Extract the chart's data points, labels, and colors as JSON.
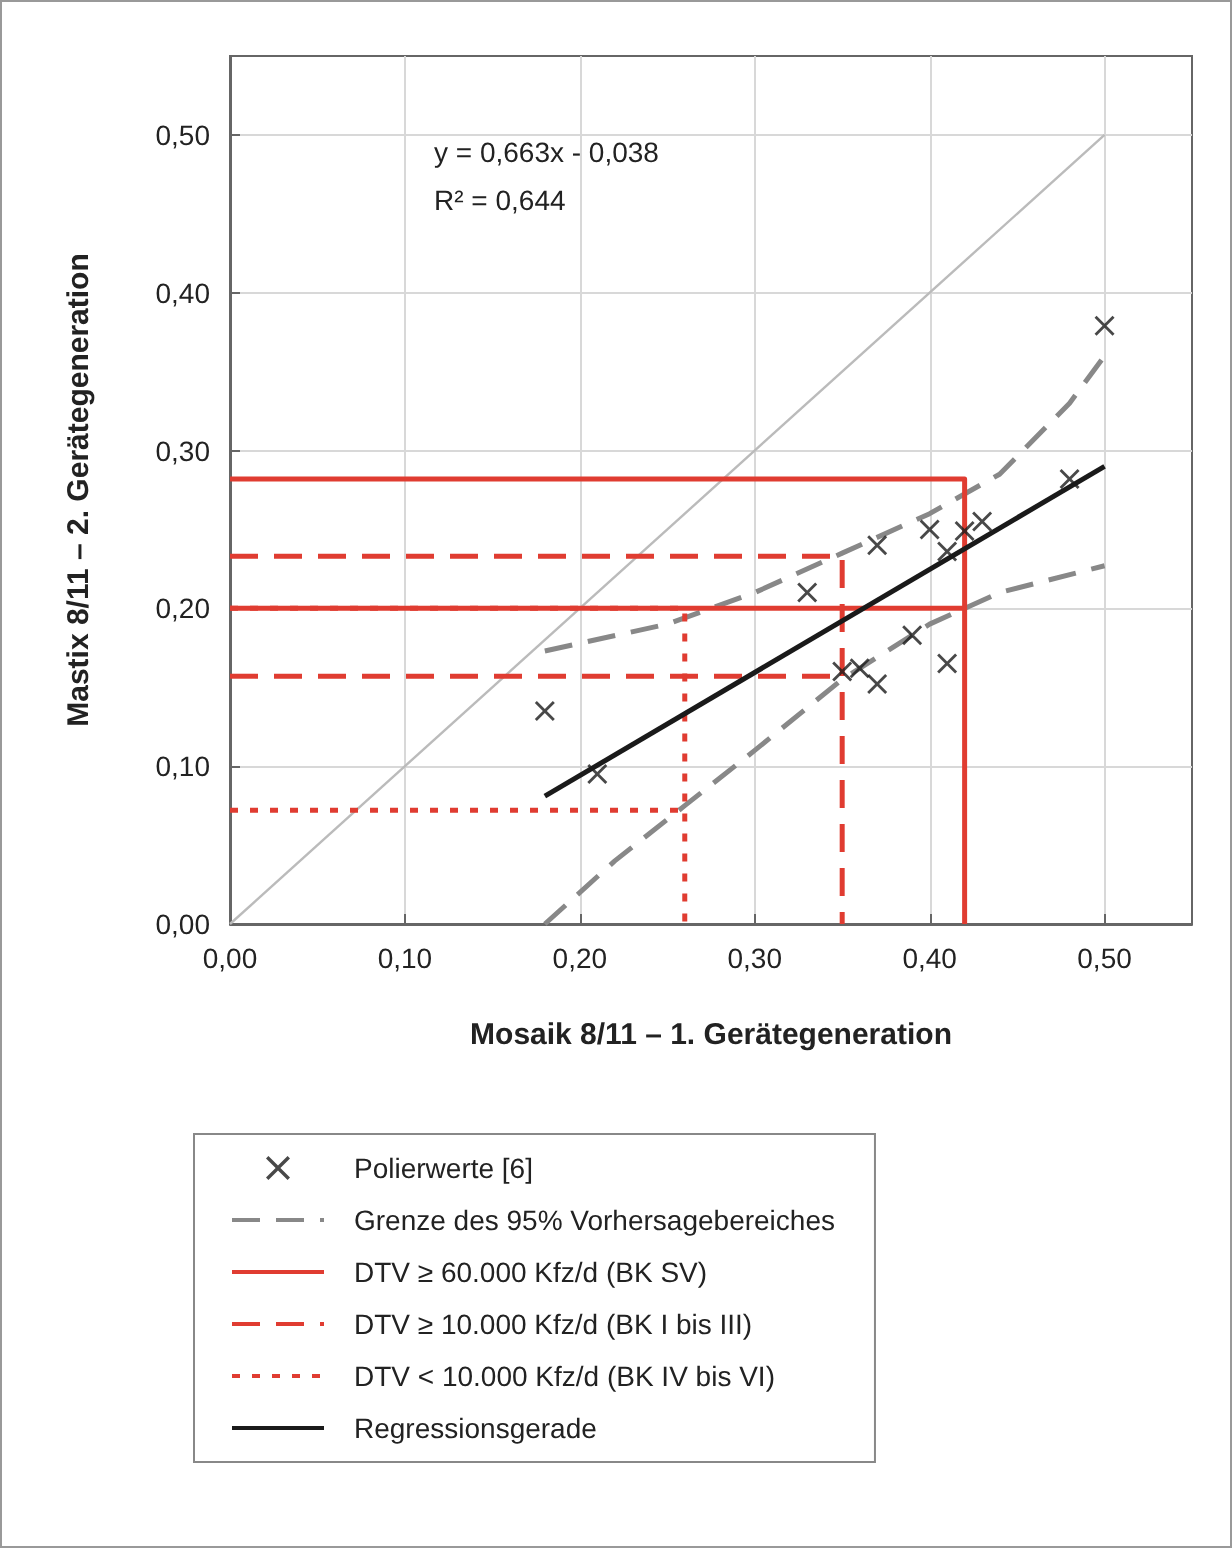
{
  "chart_data": {
    "type": "scatter",
    "xlabel": "Mosaik 8/11 – 1. Gerätegeneration",
    "ylabel": "Mastix 8/11 – 2. Gerätegeneration",
    "annotations": [
      "y = 0,663x - 0,038",
      "R² = 0,644"
    ],
    "xlim": [
      0,
      0.55
    ],
    "ylim": [
      0,
      0.55
    ],
    "xticks": [
      {
        "value": 0,
        "label": "0,00"
      },
      {
        "value": 0.1,
        "label": "0,10"
      },
      {
        "value": 0.2,
        "label": "0,20"
      },
      {
        "value": 0.3,
        "label": "0,30"
      },
      {
        "value": 0.4,
        "label": "0,40"
      },
      {
        "value": 0.5,
        "label": "0,50"
      }
    ],
    "yticks": [
      {
        "value": 0,
        "label": "0,00"
      },
      {
        "value": 0.1,
        "label": "0,10"
      },
      {
        "value": 0.2,
        "label": "0,20"
      },
      {
        "value": 0.3,
        "label": "0,30"
      },
      {
        "value": 0.4,
        "label": "0,40"
      },
      {
        "value": 0.5,
        "label": "0,50"
      }
    ],
    "grid": true,
    "legend": "bottom",
    "series": [
      {
        "type": "line",
        "color": "#bbbbbb",
        "line_style": "solid",
        "marker": "none",
        "x": [
          0,
          0.5
        ],
        "values": [
          0,
          0.5
        ]
      },
      {
        "type": "scatter",
        "name": "Polierwerte [6]",
        "color": "#1a1a1a",
        "marker": "cross",
        "x": [
          0.18,
          0.21,
          0.33,
          0.37,
          0.35,
          0.36,
          0.37,
          0.39,
          0.4,
          0.41,
          0.41,
          0.42,
          0.43,
          0.48,
          0.5
        ],
        "values": [
          0.135,
          0.095,
          0.21,
          0.24,
          0.16,
          0.162,
          0.152,
          0.183,
          0.25,
          0.165,
          0.236,
          0.249,
          0.255,
          0.282,
          0.379
        ]
      },
      {
        "type": "line",
        "name": "Grenze des 95% Vorhersagebereiches",
        "color": "#888888",
        "line_style": "dashed",
        "marker": "none",
        "x": [
          0.18,
          0.25,
          0.3,
          0.35,
          0.4,
          0.44,
          0.48,
          0.5
        ],
        "values": [
          0.173,
          0.19,
          0.21,
          0.235,
          0.26,
          0.285,
          0.33,
          0.36
        ]
      },
      {
        "type": "line",
        "color": "#888888",
        "line_style": "dashed",
        "marker": "none",
        "x": [
          0.18,
          0.22,
          0.26,
          0.3,
          0.35,
          0.4,
          0.44,
          0.5
        ],
        "values": [
          0,
          0.04,
          0.075,
          0.11,
          0.155,
          0.19,
          0.21,
          0.227
        ]
      },
      {
        "type": "line",
        "name": "DTV ≥ 60.000 Kfz/d (BK SV)",
        "color": "#e03c31",
        "line_style": "solid",
        "marker": "none",
        "x": [
          0,
          0.42,
          0.42
        ],
        "values": [
          0.282,
          0.282,
          0
        ]
      },
      {
        "type": "line",
        "color": "#e03c31",
        "line_style": "solid",
        "marker": "none",
        "x": [
          0,
          0.42
        ],
        "values": [
          0.2,
          0.2
        ]
      },
      {
        "type": "line",
        "name": "DTV ≥ 10.000 Kfz/d (BK I bis III)",
        "color": "#e03c31",
        "line_style": "dashed",
        "marker": "none",
        "x": [
          0,
          0.35,
          0.35
        ],
        "values": [
          0.233,
          0.233,
          0
        ]
      },
      {
        "type": "line",
        "color": "#e03c31",
        "line_style": "dashed",
        "marker": "none",
        "x": [
          0,
          0.35
        ],
        "values": [
          0.157,
          0.157
        ]
      },
      {
        "type": "line",
        "name": "DTV < 10.000 Kfz/d (BK IV bis VI)",
        "color": "#e03c31",
        "line_style": "dotted",
        "marker": "none",
        "x": [
          0,
          0.26,
          0.26
        ],
        "values": [
          0.2,
          0.2,
          0
        ]
      },
      {
        "type": "line",
        "color": "#e03c31",
        "line_style": "dotted",
        "marker": "none",
        "x": [
          0,
          0.26
        ],
        "values": [
          0.072,
          0.072
        ]
      },
      {
        "type": "line",
        "name": "Regressionsgerade",
        "color": "#1a1a1a",
        "line_style": "solid",
        "marker": "none",
        "x": [
          0.18,
          0.5
        ],
        "values": [
          0.081,
          0.29
        ]
      }
    ]
  }
}
